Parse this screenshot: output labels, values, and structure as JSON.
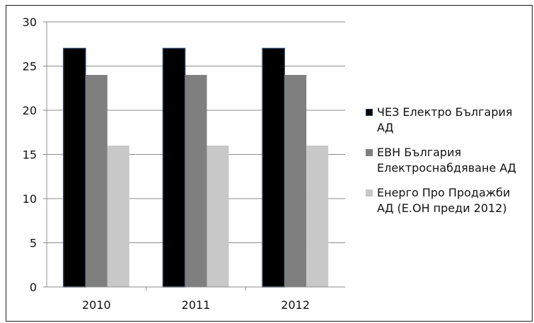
{
  "chart_data": {
    "type": "bar",
    "categories": [
      "2010",
      "2011",
      "2012"
    ],
    "series": [
      {
        "name": "ЧЕЗ Електро България АД",
        "values": [
          27,
          27,
          27
        ],
        "color": "#000000",
        "stroke": "#1f3a5f"
      },
      {
        "name": "ЕВН България Електроснабдяване АД",
        "values": [
          24,
          24,
          24
        ],
        "color": "#7f7f7f"
      },
      {
        "name": "Енерго Про Продажби АД (Е.ОН преди 2012)",
        "values": [
          16,
          16,
          16
        ],
        "color": "#c8c8c8"
      }
    ],
    "title": "",
    "xlabel": "",
    "ylabel": "",
    "ylim": [
      0,
      30
    ],
    "yticks": [
      0,
      5,
      10,
      15,
      20,
      25,
      30
    ],
    "grid": true,
    "legend_position": "right"
  },
  "legend": {
    "items": [
      {
        "lines": [
          "ЧЕЗ Електро България",
          "АД"
        ]
      },
      {
        "lines": [
          "ЕВН България",
          "Електроснабдяване АД"
        ]
      },
      {
        "lines": [
          "Енерго Про Продажби",
          "АД (Е.ОН преди 2012)"
        ]
      }
    ]
  }
}
